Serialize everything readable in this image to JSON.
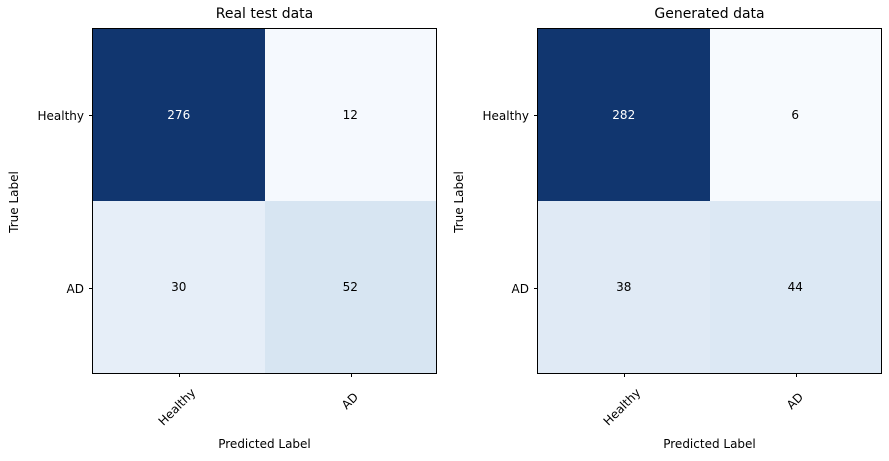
{
  "figure": {
    "background": "#ffffff",
    "axes_border_color": "#000000",
    "colormap_dark": "#11366f",
    "colormap_light": "#f5f9fe"
  },
  "chart_data": [
    {
      "type": "heatmap",
      "title": "Real test data",
      "xlabel": "Predicted Label",
      "ylabel": "True Label",
      "x_tick_labels": [
        "Healthy",
        "AD"
      ],
      "y_tick_labels": [
        "Healthy",
        "AD"
      ],
      "values": [
        [
          276,
          12
        ],
        [
          30,
          52
        ]
      ],
      "rows": [
        {
          "cells": [
            {
              "value": "276",
              "bg": "#11366f",
              "fg": "#ffffff"
            },
            {
              "value": "12",
              "bg": "#f5f9fe",
              "fg": "#000000"
            }
          ]
        },
        {
          "cells": [
            {
              "value": "30",
              "bg": "#e6eef8",
              "fg": "#000000"
            },
            {
              "value": "52",
              "bg": "#d7e5f2",
              "fg": "#000000"
            }
          ]
        }
      ]
    },
    {
      "type": "heatmap",
      "title": "Generated data",
      "xlabel": "Predicted Label",
      "ylabel": "True Label",
      "x_tick_labels": [
        "Healthy",
        "AD"
      ],
      "y_tick_labels": [
        "Healthy",
        "AD"
      ],
      "values": [
        [
          282,
          6
        ],
        [
          38,
          44
        ]
      ],
      "rows": [
        {
          "cells": [
            {
              "value": "282",
              "bg": "#11366f",
              "fg": "#ffffff"
            },
            {
              "value": "6",
              "bg": "#f7fafe",
              "fg": "#000000"
            }
          ]
        },
        {
          "cells": [
            {
              "value": "38",
              "bg": "#e0eaf5",
              "fg": "#000000"
            },
            {
              "value": "44",
              "bg": "#dce8f4",
              "fg": "#000000"
            }
          ]
        }
      ]
    }
  ]
}
